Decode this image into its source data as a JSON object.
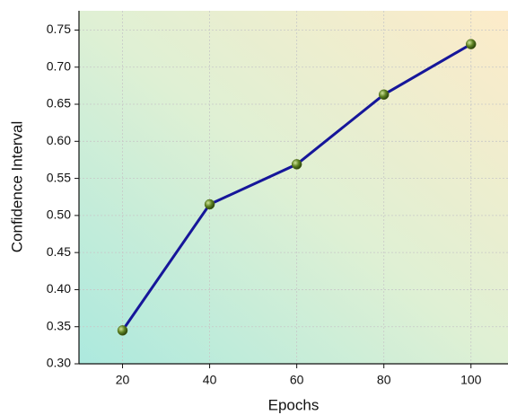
{
  "chart_data": {
    "type": "line",
    "xlabel": "Epochs",
    "ylabel": "Confidence Interval",
    "x": [
      20,
      40,
      60,
      80,
      100
    ],
    "series": [
      {
        "color": "#16169a",
        "marker_color": "#4d6b1a",
        "values": [
          0.345,
          0.515,
          0.569,
          0.663,
          0.731
        ]
      }
    ],
    "xlim": [
      10,
      108.5
    ],
    "ylim": [
      0.3,
      0.776
    ],
    "xticks": [
      20,
      40,
      60,
      80,
      100
    ],
    "yticks": [
      {
        "value": 0.3,
        "label": "0.30"
      },
      {
        "value": 0.35,
        "label": "0.35"
      },
      {
        "value": 0.4,
        "label": "0.40"
      },
      {
        "value": 0.45,
        "label": "0.45"
      },
      {
        "value": 0.5,
        "label": "0.50"
      },
      {
        "value": 0.55,
        "label": "0.55"
      },
      {
        "value": 0.6,
        "label": "0.60"
      },
      {
        "value": 0.65,
        "label": "0.65"
      },
      {
        "value": 0.7,
        "label": "0.70"
      },
      {
        "value": 0.75,
        "label": "0.75"
      }
    ],
    "grid": true
  }
}
